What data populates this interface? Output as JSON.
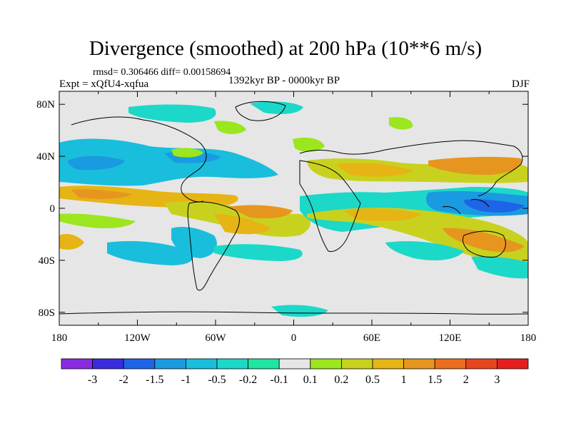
{
  "title": "Divergence (smoothed) at 200 hPa (10**6 m/s)",
  "stats": "rmsd= 0.306466 diff= 0.00158694",
  "experiment": "Expt = xQfU4-xqfua",
  "period": "1392kyr BP - 0000kyr BP",
  "season": "DJF",
  "lat_axis": {
    "labels": [
      "80N",
      "40N",
      "0",
      "40S",
      "80S"
    ],
    "values": [
      80,
      40,
      0,
      -40,
      -80
    ]
  },
  "lon_axis": {
    "labels": [
      "180",
      "120W",
      "60W",
      "0",
      "60E",
      "120E",
      "180"
    ],
    "values": [
      -180,
      -120,
      -60,
      0,
      60,
      120,
      180
    ]
  },
  "colorbar": {
    "labels": [
      "-3",
      "-2",
      "-1.5",
      "-1",
      "-0.5",
      "-0.2",
      "-0.1",
      "0.1",
      "0.2",
      "0.5",
      "1",
      "1.5",
      "2",
      "3"
    ],
    "colors": [
      "#8a2be2",
      "#3a2bdc",
      "#1e64e6",
      "#1a9ae0",
      "#19bedc",
      "#1cd8c8",
      "#1ee6a0",
      "#e6e6e6",
      "#9be61e",
      "#c8d21e",
      "#e6b414",
      "#e6961e",
      "#eb6e1e",
      "#e6461e",
      "#e61e1e"
    ]
  },
  "colors": {
    "land_outline": "#000000",
    "background": "#e6e6e6"
  }
}
